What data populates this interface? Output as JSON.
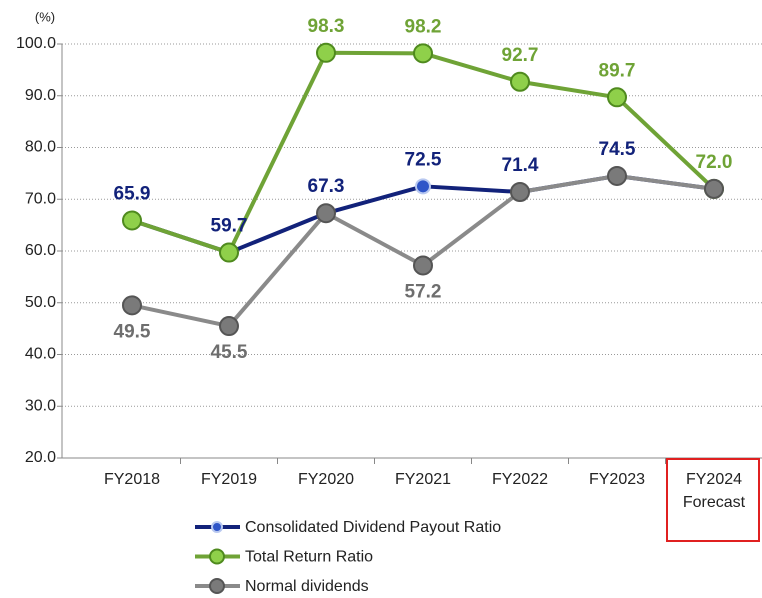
{
  "chart_data": {
    "type": "line",
    "y_unit": "(%)",
    "categories": [
      "FY2018",
      "FY2019",
      "FY2020",
      "FY2021",
      "FY2022",
      "FY2023",
      "FY2024\nForecast"
    ],
    "highlight_category": 6,
    "series": [
      {
        "name": "Consolidated Dividend Payout Ratio",
        "color": "#12227a",
        "marker_fill": "#2f55c8",
        "marker_stroke": "#b8c8f0",
        "values": [
          65.9,
          59.7,
          67.3,
          72.5,
          71.4,
          74.5,
          72.0
        ],
        "value_labels": [
          "65.9",
          "59.7",
          "67.3",
          "72.5",
          "71.4",
          "74.5",
          null
        ],
        "label_position": "above"
      },
      {
        "name": "Total Return Ratio",
        "color": "#6fa336",
        "marker_fill": "#8fd04a",
        "marker_stroke": "#4f8a1e",
        "values": [
          65.9,
          59.7,
          98.3,
          98.2,
          92.7,
          89.7,
          72.0
        ],
        "value_labels": [
          null,
          null,
          "98.3",
          "98.2",
          "92.7",
          "89.7",
          "72.0"
        ],
        "label_position": "above"
      },
      {
        "name": "Normal dividends",
        "color": "#8a8a8a",
        "marker_fill": "#7a7a7a",
        "marker_stroke": "#555555",
        "values": [
          49.5,
          45.5,
          67.3,
          57.2,
          71.4,
          74.5,
          72.0
        ],
        "value_labels": [
          "49.5",
          "45.5",
          null,
          "57.2",
          null,
          null,
          null
        ],
        "label_position": "below"
      }
    ],
    "ylim": [
      20,
      100
    ],
    "yticks": [
      {
        "value": 20,
        "label": "20.0"
      },
      {
        "value": 30,
        "label": "30.0"
      },
      {
        "value": 40,
        "label": "40.0"
      },
      {
        "value": 50,
        "label": "50.0"
      },
      {
        "value": 60,
        "label": "60.0"
      },
      {
        "value": 70,
        "label": "70.0"
      },
      {
        "value": 80,
        "label": "80.0"
      },
      {
        "value": 90,
        "label": "90.0"
      },
      {
        "value": 100,
        "label": "100.0"
      }
    ],
    "grid": true
  }
}
